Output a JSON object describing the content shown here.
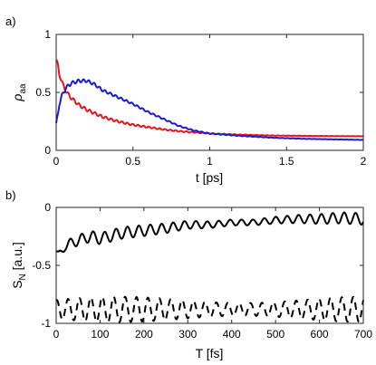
{
  "chart_data": [
    {
      "type": "line",
      "panel_label": "a)",
      "xlabel": "t [ps]",
      "ylabel_main": "ρ",
      "ylabel_sub": "aa",
      "xlim": [
        0,
        2
      ],
      "ylim": [
        0,
        1
      ],
      "xticks": [
        0,
        0.5,
        1,
        1.5,
        2
      ],
      "xtick_labels": [
        "0",
        "0.5",
        "1",
        "1.5",
        "2"
      ],
      "yticks": [
        0,
        0.5,
        1
      ],
      "ytick_labels": [
        "0",
        "0.5",
        "1"
      ],
      "grid": false,
      "series": [
        {
          "color": "#e8141b",
          "x": [
            0,
            0.01,
            0.02,
            0.04,
            0.06,
            0.08,
            0.1,
            0.15,
            0.2,
            0.3,
            0.4,
            0.5,
            0.6,
            0.7,
            0.8,
            0.9,
            1.0,
            1.2,
            1.4,
            1.6,
            1.8,
            2.0
          ],
          "y": [
            0.78,
            0.74,
            0.66,
            0.58,
            0.52,
            0.48,
            0.45,
            0.39,
            0.35,
            0.29,
            0.25,
            0.22,
            0.2,
            0.18,
            0.165,
            0.155,
            0.145,
            0.135,
            0.128,
            0.125,
            0.123,
            0.122
          ]
        },
        {
          "color": "#1a1ad6",
          "x": [
            0,
            0.01,
            0.02,
            0.04,
            0.06,
            0.08,
            0.1,
            0.15,
            0.2,
            0.25,
            0.3,
            0.4,
            0.5,
            0.6,
            0.7,
            0.8,
            0.9,
            1.0,
            1.2,
            1.4,
            1.6,
            1.8,
            2.0
          ],
          "y": [
            0.22,
            0.3,
            0.4,
            0.48,
            0.53,
            0.56,
            0.58,
            0.6,
            0.6,
            0.57,
            0.52,
            0.46,
            0.4,
            0.33,
            0.27,
            0.21,
            0.17,
            0.145,
            0.125,
            0.11,
            0.1,
            0.095,
            0.09
          ]
        }
      ]
    },
    {
      "type": "line",
      "panel_label": "b)",
      "xlabel": "T [fs]",
      "ylabel_main": "S",
      "ylabel_sub": "N",
      "ylabel_unit": " [a.u.]",
      "xlim": [
        0,
        700
      ],
      "ylim": [
        -1,
        0
      ],
      "xticks": [
        0,
        100,
        200,
        300,
        400,
        500,
        600,
        700
      ],
      "xtick_labels": [
        "0",
        "100",
        "200",
        "300",
        "400",
        "500",
        "600",
        "700"
      ],
      "yticks": [
        -1,
        -0.5,
        0
      ],
      "ytick_labels": [
        "-1",
        "-0.5",
        "0"
      ],
      "grid": false,
      "series": [
        {
          "color": "#000000",
          "dash": "solid",
          "x": [
            0,
            5,
            10,
            20,
            40,
            60,
            80,
            100,
            150,
            200,
            250,
            300,
            350,
            400,
            450,
            500,
            550,
            600,
            650,
            700
          ],
          "y": [
            -0.38,
            -0.42,
            -0.4,
            -0.33,
            -0.3,
            -0.27,
            -0.25,
            -0.27,
            -0.22,
            -0.2,
            -0.18,
            -0.15,
            -0.15,
            -0.13,
            -0.13,
            -0.11,
            -0.1,
            -0.1,
            -0.09,
            -0.1
          ],
          "oscillation": 0.05
        },
        {
          "color": "#000000",
          "dash": "dashed",
          "x": [
            0,
            700
          ],
          "y": [
            -0.88,
            -0.88
          ],
          "oscillation": 0.11
        }
      ]
    }
  ]
}
